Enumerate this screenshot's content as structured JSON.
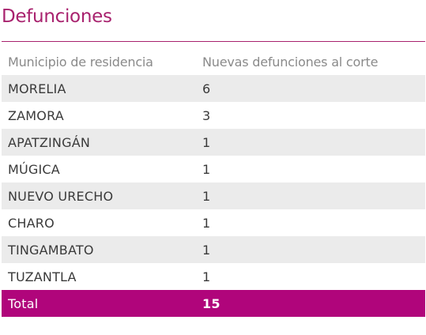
{
  "title": "Defunciones",
  "table": {
    "headers": [
      "Municipio de residencia",
      "Nuevas defunciones al corte"
    ],
    "rows": [
      [
        "MORELIA",
        "6"
      ],
      [
        "ZAMORA",
        "3"
      ],
      [
        "APATZINGÁN",
        "1"
      ],
      [
        "MÚGICA",
        "1"
      ],
      [
        "NUEVO URECHO",
        "1"
      ],
      [
        "CHARO",
        "1"
      ],
      [
        "TINGAMBATO",
        "1"
      ],
      [
        "TUZANTLA",
        "1"
      ]
    ],
    "total": [
      "Total",
      "15"
    ]
  },
  "colors": {
    "accent": "#a8226e",
    "total_bg": "#b0057b",
    "stripe": "#ebebeb",
    "header_text": "#8a8a8a"
  }
}
